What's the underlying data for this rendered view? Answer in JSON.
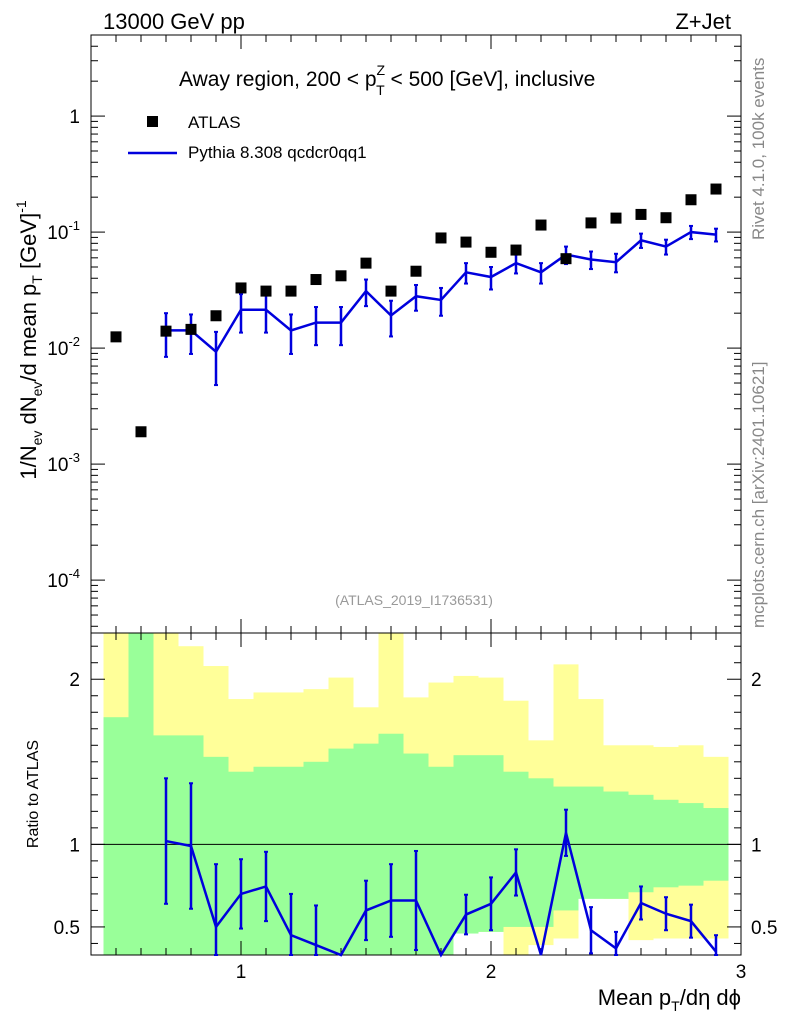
{
  "header": {
    "energy_label": "13000 GeV pp",
    "process_label": "Z+Jet"
  },
  "side_labels": {
    "rivet": "Rivet 4.1.0,  100k events",
    "mcplots": "mcplots.cern.ch [arXiv:2401.10621]"
  },
  "main_panel": {
    "title_prefix": "Away region, 200 < p",
    "title_sup": "Z",
    "title_sub": "T",
    "title_suffix": " < 500 [GeV], inclusive",
    "analysis_id": "(ATLAS_2019_I1736531)",
    "ylabel": "1/N_ev dN_ev/d mean p_T [GeV]^-1",
    "legend": {
      "data_label": "ATLAS",
      "mc_label": "Pythia 8.308 qcdcr0qq1"
    }
  },
  "ratio_panel": {
    "ylabel": "Ratio to ATLAS"
  },
  "xlabel": "Mean p_T/dη dϕ",
  "colors": {
    "data_marker": "#000000",
    "mc_line": "#0000dd",
    "band_inner": "#99ff99",
    "band_outer": "#ffff99",
    "side_text": "#888888"
  },
  "chart_data": {
    "type": "scatter",
    "x_range": [
      0.4,
      3.0
    ],
    "x_ticks": [
      1,
      2,
      3
    ],
    "main": {
      "y_scale": "log",
      "y_range": [
        3.5e-05,
        5
      ],
      "y_ticks": [
        {
          "value": 0.0001,
          "mantissa": "10",
          "exp": "-4"
        },
        {
          "value": 0.001,
          "mantissa": "10",
          "exp": "-3"
        },
        {
          "value": 0.01,
          "mantissa": "10",
          "exp": "-2"
        },
        {
          "value": 0.1,
          "mantissa": "10",
          "exp": "-1"
        },
        {
          "value": 1,
          "mantissa": "1",
          "exp": ""
        }
      ]
    },
    "ratio": {
      "y_range": [
        0.33,
        2.28
      ],
      "y_ticks": [
        0.5,
        1,
        2
      ],
      "reference_line": 1.0
    },
    "series": [
      {
        "name": "ATLAS",
        "kind": "markers",
        "x": [
          0.5,
          0.6,
          0.7,
          0.8,
          0.9,
          1.0,
          1.1,
          1.2,
          1.3,
          1.4,
          1.5,
          1.6,
          1.7,
          1.8,
          1.9,
          2.0,
          2.1,
          2.2,
          2.3,
          2.4,
          2.5,
          2.6,
          2.7,
          2.8,
          2.9
        ],
        "y": [
          0.0125,
          0.0019,
          0.014,
          0.0145,
          0.019,
          0.033,
          0.031,
          0.031,
          0.039,
          0.042,
          0.054,
          0.031,
          0.046,
          0.089,
          0.082,
          0.067,
          0.07,
          0.115,
          0.059,
          0.12,
          0.132,
          0.142,
          0.133,
          0.19,
          0.235
        ]
      },
      {
        "name": "Pythia 8.308 qcdcr0qq1",
        "kind": "line",
        "x": [
          0.7,
          0.8,
          0.9,
          1.0,
          1.1,
          1.2,
          1.3,
          1.4,
          1.5,
          1.6,
          1.7,
          1.8,
          1.9,
          2.0,
          2.1,
          2.2,
          2.3,
          2.4,
          2.5,
          2.6,
          2.7,
          2.8,
          2.9
        ],
        "y": [
          0.0142,
          0.0142,
          0.0093,
          0.0214,
          0.0214,
          0.0142,
          0.0166,
          0.0166,
          0.031,
          0.0191,
          0.028,
          0.026,
          0.045,
          0.041,
          0.054,
          0.045,
          0.064,
          0.058,
          0.055,
          0.085,
          0.075,
          0.1,
          0.095
        ],
        "y_err": [
          0.0058,
          0.0053,
          0.0045,
          0.0078,
          0.0078,
          0.0053,
          0.006,
          0.006,
          0.008,
          0.0065,
          0.007,
          0.007,
          0.009,
          0.009,
          0.01,
          0.009,
          0.011,
          0.01,
          0.01,
          0.012,
          0.011,
          0.013,
          0.012
        ]
      },
      {
        "name": "ratio Pythia/ATLAS",
        "kind": "ratio_line",
        "x": [
          0.7,
          0.8,
          0.9,
          1.0,
          1.1,
          1.2,
          1.3,
          1.4,
          1.5,
          1.6,
          1.7,
          1.8,
          1.9,
          2.0,
          2.1,
          2.2,
          2.3,
          2.4,
          2.5,
          2.6,
          2.7,
          2.8,
          2.9
        ],
        "y": [
          1.02,
          0.99,
          0.5,
          0.7,
          0.745,
          0.45,
          0.39,
          0.33,
          0.6,
          0.66,
          0.66,
          0.33,
          0.575,
          0.64,
          0.83,
          0.33,
          1.07,
          0.48,
          0.37,
          0.645,
          0.58,
          0.535,
          0.35
        ],
        "y_err": [
          0.38,
          0.38,
          0.38,
          0.21,
          0.21,
          0.25,
          0.24,
          0.2,
          0.18,
          0.22,
          0.3,
          0.2,
          0.12,
          0.16,
          0.14,
          0.2,
          0.14,
          0.14,
          0.1,
          0.1,
          0.1,
          0.1,
          0.1
        ]
      }
    ],
    "ratio_bands": {
      "x_edges": [
        0.45,
        0.55,
        0.65,
        0.75,
        0.85,
        0.95,
        1.05,
        1.15,
        1.25,
        1.35,
        1.45,
        1.55,
        1.65,
        1.75,
        1.85,
        1.95,
        2.05,
        2.15,
        2.25,
        2.35,
        2.45,
        2.55,
        2.65,
        2.75,
        2.85,
        2.95
      ],
      "inner_lo": [
        0.33,
        0.33,
        0.33,
        0.33,
        0.33,
        0.33,
        0.33,
        0.33,
        0.33,
        0.33,
        0.33,
        0.33,
        0.33,
        0.33,
        0.46,
        0.47,
        0.5,
        0.5,
        0.6,
        0.67,
        0.67,
        0.71,
        0.74,
        0.75,
        0.78
      ],
      "inner_hi": [
        1.77,
        2.28,
        1.66,
        1.66,
        1.53,
        1.44,
        1.47,
        1.47,
        1.5,
        1.58,
        1.61,
        1.67,
        1.55,
        1.47,
        1.54,
        1.54,
        1.44,
        1.4,
        1.35,
        1.35,
        1.32,
        1.3,
        1.27,
        1.25,
        1.22
      ],
      "outer_lo": [
        0.33,
        0.33,
        0.33,
        0.33,
        0.33,
        0.33,
        0.51,
        0.43,
        0.38,
        0.33,
        0.33,
        0.33,
        0.33,
        0.41,
        0.51,
        0.47,
        0.33,
        0.39,
        0.43,
        0.71,
        0.67,
        0.42,
        0.43,
        0.43,
        0.43
      ],
      "outer_hi": [
        2.28,
        2.28,
        2.28,
        2.2,
        2.08,
        1.88,
        1.92,
        1.92,
        1.94,
        2.01,
        1.83,
        2.28,
        1.89,
        1.98,
        2.02,
        2.01,
        1.87,
        1.63,
        2.09,
        1.88,
        1.6,
        1.6,
        1.59,
        1.6,
        1.53
      ]
    }
  }
}
